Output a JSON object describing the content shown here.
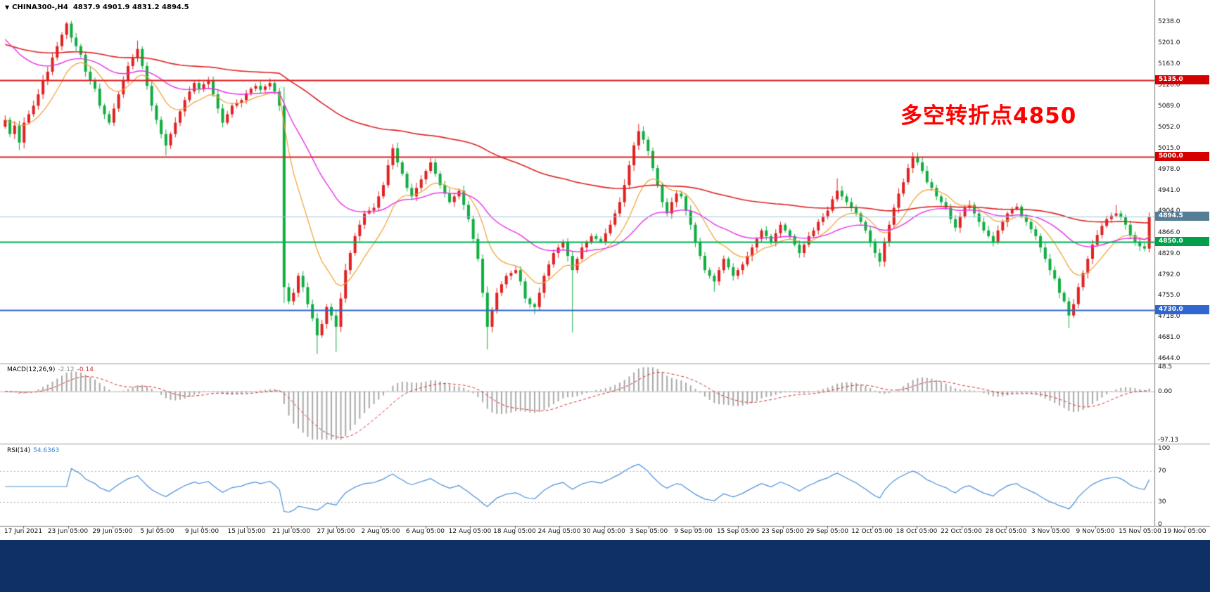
{
  "symbol_header": {
    "dropdown_icon": "▼",
    "symbol": "CHINA300-,H4",
    "ohlc": "4837.9 4901.9 4831.2 4894.5"
  },
  "annotation": {
    "text": "多空转折点4850",
    "color": "#ff0000"
  },
  "chart_data": {
    "type": "candlestick",
    "symbol": "CHINA300-",
    "timeframe": "H4",
    "background": "#ffffff",
    "legend_position": "none",
    "grid": false,
    "price_axis": {
      "y_top_value": 5238.0,
      "y_bottom_value": 4644.0,
      "labels": [
        "5238.0",
        "5201.0",
        "5163.0",
        "5126.0",
        "5089.0",
        "5052.0",
        "5015.0",
        "4978.0",
        "4941.0",
        "4904.0",
        "4866.0",
        "4829.0",
        "4792.0",
        "4755.0",
        "4718.0",
        "4681.0",
        "4644.0"
      ]
    },
    "time_axis": {
      "labels": [
        "17 Jun 2021",
        "23 Jun 05:00",
        "29 Jun 05:00",
        "5 Jul 05:00",
        "9 Jul 05:00",
        "15 Jul 05:00",
        "21 Jul 05:00",
        "27 Jul 05:00",
        "2 Aug 05:00",
        "6 Aug 05:00",
        "12 Aug 05:00",
        "18 Aug 05:00",
        "24 Aug 05:00",
        "30 Aug 05:00",
        "3 Sep 05:00",
        "9 Sep 05:00",
        "15 Sep 05:00",
        "23 Sep 05:00",
        "29 Sep 05:00",
        "12 Oct 05:00",
        "18 Oct 05:00",
        "22 Oct 05:00",
        "28 Oct 05:00",
        "3 Nov 05:00",
        "9 Nov 05:00",
        "15 Nov 05:00",
        "19 Nov 05:00"
      ]
    },
    "levels": [
      {
        "value": 5135.0,
        "label": "5135.0",
        "line_color": "#e02020",
        "badge_color": "#d40000",
        "width": 2
      },
      {
        "value": 5000.0,
        "label": "5000.0",
        "line_color": "#e02020",
        "badge_color": "#d40000",
        "width": 2
      },
      {
        "value": 4850.0,
        "label": "4850.0",
        "line_color": "#00b050",
        "badge_color": "#00a04a",
        "width": 2
      },
      {
        "value": 4730.0,
        "label": "4730.0",
        "line_color": "#2f66d0",
        "badge_color": "#2f66d0",
        "width": 2
      }
    ],
    "current_price": {
      "value": 4894.5,
      "label": "4894.5",
      "line_color": "#9cc3dd",
      "badge_color": "#557e96"
    },
    "moving_averages": [
      {
        "name": "ma-fast",
        "period": 12,
        "seed": null,
        "color": "#f0a030",
        "width": 1.2
      },
      {
        "name": "ma-mid",
        "period": 36,
        "seed": 5215,
        "color": "#e832e8",
        "width": 1.4
      },
      {
        "name": "ma-slow",
        "period": 130,
        "seed": 5200,
        "color": "#dd2222",
        "width": 1.6
      }
    ],
    "candles": {
      "up_color": "#e02020",
      "down_color": "#0fad3f",
      "closes": [
        5065,
        5040,
        5055,
        5025,
        5060,
        5075,
        5090,
        5110,
        5135,
        5150,
        5175,
        5195,
        5215,
        5235,
        5210,
        5195,
        5180,
        5150,
        5135,
        5120,
        5090,
        5075,
        5060,
        5085,
        5110,
        5135,
        5160,
        5175,
        5190,
        5160,
        5125,
        5090,
        5065,
        5040,
        5020,
        5040,
        5060,
        5080,
        5100,
        5115,
        5130,
        5120,
        5128,
        5135,
        5110,
        5085,
        5060,
        5075,
        5090,
        5095,
        5100,
        5112,
        5120,
        5125,
        5118,
        5124,
        5130,
        5115,
        5090,
        4770,
        4745,
        4760,
        4790,
        4770,
        4740,
        4715,
        4685,
        4705,
        4735,
        4720,
        4700,
        4750,
        4800,
        4830,
        4860,
        4880,
        4900,
        4905,
        4910,
        4930,
        4950,
        4985,
        5015,
        4990,
        4970,
        4945,
        4930,
        4945,
        4960,
        4975,
        4990,
        4970,
        4950,
        4935,
        4920,
        4930,
        4940,
        4915,
        4890,
        4855,
        4820,
        4760,
        4700,
        4730,
        4760,
        4775,
        4790,
        4795,
        4800,
        4780,
        4750,
        4740,
        4735,
        4760,
        4790,
        4810,
        4830,
        4840,
        4850,
        4825,
        4800,
        4820,
        4840,
        4850,
        4860,
        4855,
        4850,
        4865,
        4880,
        4900,
        4920,
        4950,
        4985,
        5020,
        5045,
        5030,
        5010,
        4980,
        4950,
        4920,
        4900,
        4920,
        4935,
        4930,
        4905,
        4880,
        4850,
        4825,
        4800,
        4790,
        4780,
        4800,
        4820,
        4805,
        4790,
        4800,
        4810,
        4825,
        4840,
        4855,
        4870,
        4860,
        4850,
        4865,
        4880,
        4870,
        4860,
        4845,
        4830,
        4845,
        4860,
        4870,
        4885,
        4895,
        4905,
        4925,
        4940,
        4930,
        4920,
        4910,
        4900,
        4885,
        4870,
        4850,
        4830,
        4815,
        4850,
        4880,
        4910,
        4935,
        4955,
        4980,
        5000,
        4990,
        4975,
        4955,
        4945,
        4930,
        4920,
        4910,
        4890,
        4875,
        4895,
        4910,
        4915,
        4900,
        4885,
        4870,
        4860,
        4850,
        4870,
        4885,
        4900,
        4908,
        4912,
        4895,
        4885,
        4872,
        4860,
        4840,
        4820,
        4800,
        4785,
        4760,
        4745,
        4720,
        4740,
        4770,
        4795,
        4820,
        4845,
        4862,
        4878,
        4890,
        4896,
        4900,
        4893,
        4880,
        4862,
        4850,
        4842,
        4838,
        4894.5
      ],
      "high_overrides": {
        "13": 5238,
        "28": 5205,
        "43": 5141,
        "56": 5138,
        "82": 5022,
        "134": 5058,
        "176": 4962,
        "192": 5008,
        "214": 4918,
        "235": 4915
      },
      "low_overrides": {
        "3": 5012,
        "34": 5002,
        "59": 4742,
        "66": 4652,
        "70": 4656,
        "102": 4660,
        "112": 4722,
        "120": 4690,
        "150": 4762,
        "185": 4806,
        "225": 4698
      },
      "last_ohlc": {
        "open": 4837.9,
        "high": 4901.9,
        "low": 4831.2,
        "close": 4894.5
      }
    },
    "macd": {
      "label": "MACD(12,26,9)",
      "value_main": "-2.12",
      "value_signal": "-0.14",
      "fast": 12,
      "slow": 26,
      "signal": 9,
      "histogram_color": "#a8a8a8",
      "signal_color": "#d43030",
      "axis": [
        {
          "label": "48.5",
          "value": 48.5
        },
        {
          "label": "0.00",
          "value": 0
        },
        {
          "label": "-97.13",
          "value": -97.13
        }
      ]
    },
    "rsi": {
      "label": "RSI(14)",
      "value": "54.6363",
      "period": 14,
      "line_color": "#4a90d9",
      "guide_levels": [
        70,
        30
      ],
      "axis": [
        {
          "label": "100",
          "value": 100
        },
        {
          "label": "70",
          "value": 70
        },
        {
          "label": "30",
          "value": 30
        },
        {
          "label": "0",
          "value": 0
        }
      ]
    }
  }
}
